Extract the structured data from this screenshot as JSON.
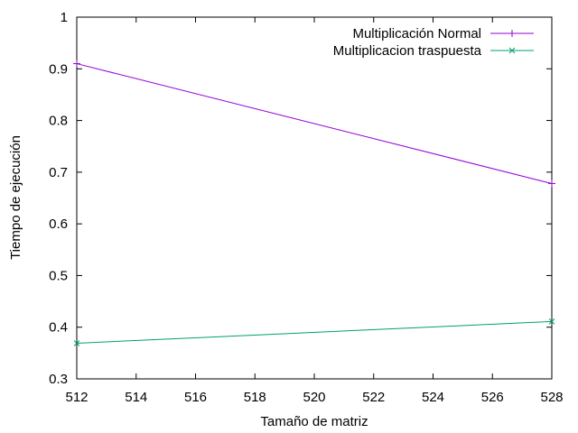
{
  "chart_data": {
    "type": "line",
    "xlabel": "Tamaño de matriz",
    "ylabel": "Tiempo de ejecución",
    "xlim": [
      512,
      528
    ],
    "ylim": [
      0.3,
      1
    ],
    "x_ticks": [
      "512",
      "514",
      "516",
      "518",
      "520",
      "522",
      "524",
      "526",
      "528"
    ],
    "y_ticks": [
      "0.3",
      "0.4",
      "0.5",
      "0.6",
      "0.7",
      "0.8",
      "0.9",
      "1"
    ],
    "grid": false,
    "legend_position": "top-right",
    "series": [
      {
        "name": "Multiplicación Normal",
        "color": "#9400d3",
        "marker": "plus",
        "x": [
          512,
          528
        ],
        "y": [
          0.91,
          0.678
        ]
      },
      {
        "name": "Multiplicacion traspuesta",
        "color": "#009e73",
        "marker": "cross",
        "x": [
          512,
          528
        ],
        "y": [
          0.369,
          0.411
        ]
      }
    ]
  }
}
